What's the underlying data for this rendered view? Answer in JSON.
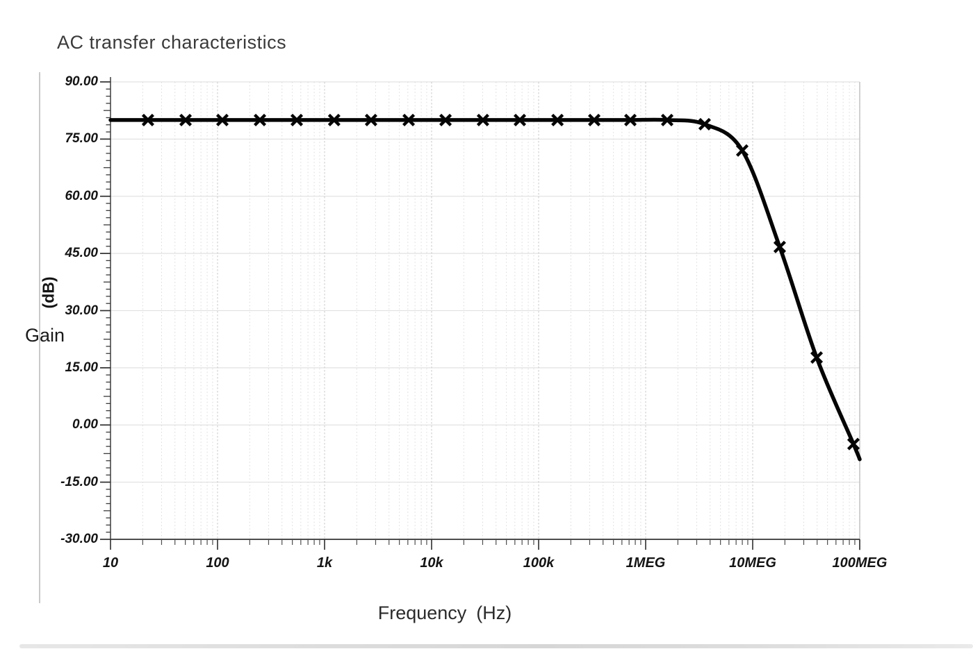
{
  "chart": {
    "title": "AC transfer characteristics",
    "y_axis": {
      "name": "Gain",
      "unit": "(dB)",
      "tick_labels": [
        "90.00",
        "75.00",
        "60.00",
        "45.00",
        "30.00",
        "15.00",
        "0.00",
        "-15.00",
        "-30.00"
      ]
    },
    "x_axis": {
      "name": "Frequency",
      "unit": "(Hz)",
      "tick_labels": [
        "10",
        "100",
        "1k",
        "10k",
        "100k",
        "1MEG",
        "10MEG",
        "100MEG"
      ]
    }
  },
  "chart_data": {
    "type": "line",
    "title": "AC transfer characteristics",
    "xlabel": "Frequency (Hz)",
    "ylabel": "Gain (dB)",
    "x_scale": "log",
    "xlim": [
      10,
      100000000
    ],
    "ylim": [
      -30,
      90
    ],
    "y_tick_step": 15,
    "x_decades": [
      10,
      100,
      1000,
      10000,
      100000,
      1000000,
      10000000,
      100000000
    ],
    "grid": true,
    "legend": "none",
    "line_color": "#050505",
    "marker": "x",
    "series": [
      {
        "name": "Gain (dB)",
        "x": [
          22.4,
          50.3,
          111,
          249,
          550,
          1230,
          2720,
          6110,
          13500,
          30200,
          66800,
          150000,
          331000,
          720000,
          1590000,
          3560000,
          7990000,
          17900000,
          39600000,
          87400000
        ],
        "y": [
          80,
          80,
          80,
          80,
          80,
          80,
          80,
          80,
          80,
          80,
          80,
          80,
          80,
          80,
          80,
          78.9,
          72.0,
          46.7,
          17.7,
          -5.0
        ]
      }
    ],
    "curve_start": {
      "x": 10,
      "y": 80
    },
    "curve_end": {
      "x": 100000000,
      "y": -9
    }
  }
}
